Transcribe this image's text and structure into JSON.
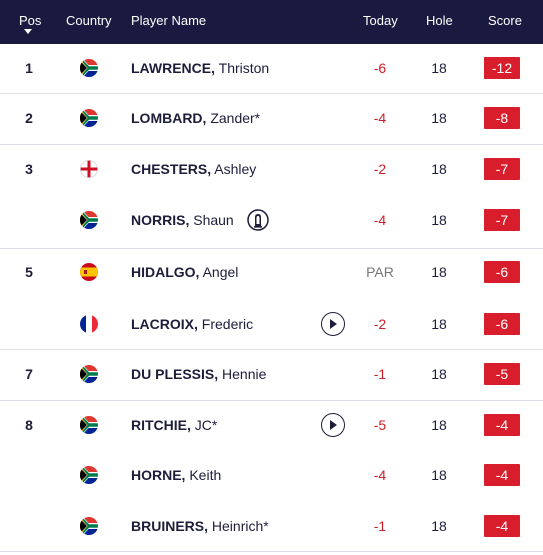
{
  "header": {
    "pos": "Pos",
    "country": "Country",
    "player": "Player Name",
    "today": "Today",
    "hole": "Hole",
    "score": "Score"
  },
  "rows": [
    {
      "pos": "1",
      "flag": "south-africa",
      "surname": "LAWRENCE,",
      "first": " Thriston",
      "today": "-6",
      "hole": "18",
      "score": "-12"
    },
    {
      "pos": "2",
      "flag": "south-africa",
      "surname": "LOMBARD,",
      "first": " Zander*",
      "today": "-4",
      "hole": "18",
      "score": "-8"
    },
    {
      "pos": "3",
      "flag": "england",
      "surname": "CHESTERS,",
      "first": " Ashley",
      "today": "-2",
      "hole": "18",
      "score": "-7"
    },
    {
      "pos": "",
      "flag": "south-africa",
      "surname": "NORRIS,",
      "first": " Shaun",
      "today": "-4",
      "hole": "18",
      "score": "-7",
      "icon": "past-champion-icon"
    },
    {
      "pos": "5",
      "flag": "spain",
      "surname": "HIDALGO,",
      "first": " Angel",
      "today": "PAR",
      "hole": "18",
      "score": "-6"
    },
    {
      "pos": "",
      "flag": "france",
      "surname": "LACROIX,",
      "first": " Frederic",
      "today": "-2",
      "hole": "18",
      "score": "-6",
      "icon": "play-icon"
    },
    {
      "pos": "7",
      "flag": "south-africa",
      "surname": "DU PLESSIS,",
      "first": " Hennie",
      "today": "-1",
      "hole": "18",
      "score": "-5"
    },
    {
      "pos": "8",
      "flag": "south-africa",
      "surname": "RITCHIE,",
      "first": " JC*",
      "today": "-5",
      "hole": "18",
      "score": "-4",
      "icon": "play-icon"
    },
    {
      "pos": "",
      "flag": "south-africa",
      "surname": "HORNE,",
      "first": " Keith",
      "today": "-4",
      "hole": "18",
      "score": "-4"
    },
    {
      "pos": "",
      "flag": "south-africa",
      "surname": "BRUINERS,",
      "first": " Heinrich*",
      "today": "-1",
      "hole": "18",
      "score": "-4"
    }
  ],
  "colors": {
    "header_bg": "#1a1a40",
    "score_badge": "#d81e2c",
    "today_negative": "#cc1f2a",
    "today_par": "#777777"
  }
}
